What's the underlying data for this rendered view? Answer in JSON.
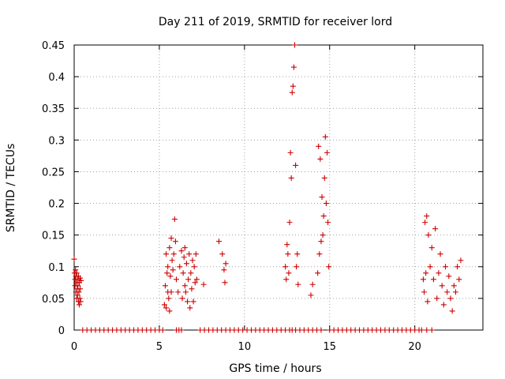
{
  "chart_data": {
    "type": "scatter",
    "title": "Day 211 of 2019, SRMTID for receiver lord",
    "xlabel": "GPS time / hours",
    "ylabel": "SRMTID / TECUs",
    "xlim": [
      0,
      24
    ],
    "ylim": [
      0,
      0.45
    ],
    "xticks": [
      0,
      5,
      10,
      15,
      20
    ],
    "xtick_labels": [
      "0",
      "5",
      "10",
      "15",
      "20"
    ],
    "yticks": [
      0,
      0.05,
      0.1,
      0.15,
      0.2,
      0.25,
      0.3,
      0.35,
      0.4,
      0.45
    ],
    "ytick_labels": [
      "0",
      "0.05",
      "0.1",
      "0.15",
      "0.2",
      "0.25",
      "0.3",
      "0.35",
      "0.4",
      "0.45"
    ],
    "grid": true,
    "marker": "+",
    "color": "#cc0000",
    "series": [
      {
        "x": [
          0.0,
          0.02,
          0.05,
          0.05,
          0.08,
          0.1,
          0.1,
          0.12,
          0.15,
          0.15,
          0.18,
          0.2,
          0.2,
          0.22,
          0.25,
          0.25,
          0.28,
          0.3,
          0.3,
          0.33,
          0.35,
          0.35,
          0.38,
          0.4,
          5.3,
          5.35,
          5.4,
          5.4,
          5.45,
          5.5,
          5.5,
          5.55,
          5.6,
          5.6,
          5.65,
          5.7,
          5.7,
          5.75,
          5.8,
          5.85,
          5.9,
          5.95,
          6.0,
          6.1,
          6.2,
          6.3,
          6.35,
          6.4,
          6.45,
          6.5,
          6.5,
          6.55,
          6.6,
          6.65,
          6.7,
          6.75,
          6.8,
          6.85,
          6.9,
          6.95,
          7.0,
          7.05,
          7.1,
          7.15,
          7.2,
          7.6,
          8.5,
          8.7,
          8.8,
          8.85,
          8.9,
          12.4,
          12.45,
          12.5,
          12.55,
          12.6,
          12.65,
          12.7,
          12.75,
          12.8,
          12.85,
          12.9,
          12.95,
          13.0,
          13.05,
          13.1,
          13.15,
          13.9,
          14.0,
          14.3,
          14.35,
          14.4,
          14.45,
          14.5,
          14.55,
          14.6,
          14.65,
          14.7,
          14.75,
          14.8,
          14.85,
          14.9,
          14.95,
          20.5,
          20.55,
          20.6,
          20.65,
          20.7,
          20.75,
          20.8,
          20.9,
          21.0,
          21.1,
          21.2,
          21.3,
          21.4,
          21.5,
          21.6,
          21.7,
          21.8,
          21.9,
          22.0,
          22.1,
          22.2,
          22.3,
          22.4,
          22.5,
          22.6,
          22.7
        ],
        "y": [
          0.112,
          0.09,
          0.08,
          0.07,
          0.095,
          0.06,
          0.085,
          0.075,
          0.05,
          0.09,
          0.065,
          0.08,
          0.055,
          0.07,
          0.045,
          0.085,
          0.06,
          0.04,
          0.075,
          0.05,
          0.082,
          0.065,
          0.045,
          0.078,
          0.04,
          0.07,
          0.12,
          0.035,
          0.09,
          0.06,
          0.1,
          0.05,
          0.13,
          0.03,
          0.085,
          0.145,
          0.06,
          0.11,
          0.095,
          0.12,
          0.175,
          0.14,
          0.08,
          0.06,
          0.1,
          0.125,
          0.05,
          0.09,
          0.115,
          0.07,
          0.13,
          0.06,
          0.105,
          0.045,
          0.08,
          0.12,
          0.035,
          0.09,
          0.065,
          0.11,
          0.045,
          0.1,
          0.075,
          0.12,
          0.08,
          0.072,
          0.14,
          0.12,
          0.095,
          0.075,
          0.105,
          0.1,
          0.08,
          0.135,
          0.12,
          0.09,
          0.17,
          0.28,
          0.24,
          0.375,
          0.385,
          0.415,
          0.45,
          0.26,
          0.1,
          0.12,
          0.072,
          0.055,
          0.072,
          0.09,
          0.29,
          0.12,
          0.27,
          0.14,
          0.21,
          0.15,
          0.18,
          0.24,
          0.305,
          0.2,
          0.28,
          0.17,
          0.1,
          0.08,
          0.06,
          0.17,
          0.09,
          0.18,
          0.045,
          0.15,
          0.1,
          0.13,
          0.08,
          0.16,
          0.05,
          0.09,
          0.12,
          0.07,
          0.04,
          0.1,
          0.06,
          0.085,
          0.05,
          0.03,
          0.07,
          0.06,
          0.1,
          0.08,
          0.11
        ]
      },
      {
        "x": [
          0.5,
          0.75,
          1.0,
          1.25,
          1.5,
          1.75,
          2.0,
          2.25,
          2.5,
          2.75,
          3.0,
          3.25,
          3.5,
          3.75,
          4.0,
          4.25,
          4.5,
          4.75,
          5.0,
          5.2,
          6.0,
          6.15,
          6.3,
          7.4,
          7.65,
          7.9,
          8.15,
          8.4,
          8.65,
          8.9,
          9.15,
          9.4,
          9.65,
          9.9,
          10.15,
          10.4,
          10.65,
          10.9,
          11.15,
          11.4,
          11.65,
          11.9,
          12.15,
          12.4,
          12.65,
          12.8,
          13.0,
          13.25,
          13.5,
          13.75,
          14.0,
          14.25,
          14.5,
          15.0,
          15.25,
          15.5,
          15.75,
          16.0,
          16.25,
          16.5,
          16.75,
          17.0,
          17.25,
          17.5,
          17.75,
          18.0,
          18.25,
          18.5,
          18.75,
          19.0,
          19.25,
          19.5,
          19.75,
          20.0,
          20.25,
          20.4,
          20.7,
          21.0
        ],
        "y": [
          0,
          0,
          0,
          0,
          0,
          0,
          0,
          0,
          0,
          0,
          0,
          0,
          0,
          0,
          0,
          0,
          0,
          0,
          0,
          0,
          0,
          0,
          0,
          0,
          0,
          0,
          0,
          0,
          0,
          0,
          0,
          0,
          0,
          0,
          0,
          0,
          0,
          0,
          0,
          0,
          0,
          0,
          0,
          0,
          0,
          0,
          0,
          0,
          0,
          0,
          0,
          0,
          0,
          0,
          0,
          0,
          0,
          0,
          0,
          0,
          0,
          0,
          0,
          0,
          0,
          0,
          0,
          0,
          0,
          0,
          0,
          0,
          0,
          0,
          0,
          0,
          0,
          0
        ]
      }
    ]
  }
}
